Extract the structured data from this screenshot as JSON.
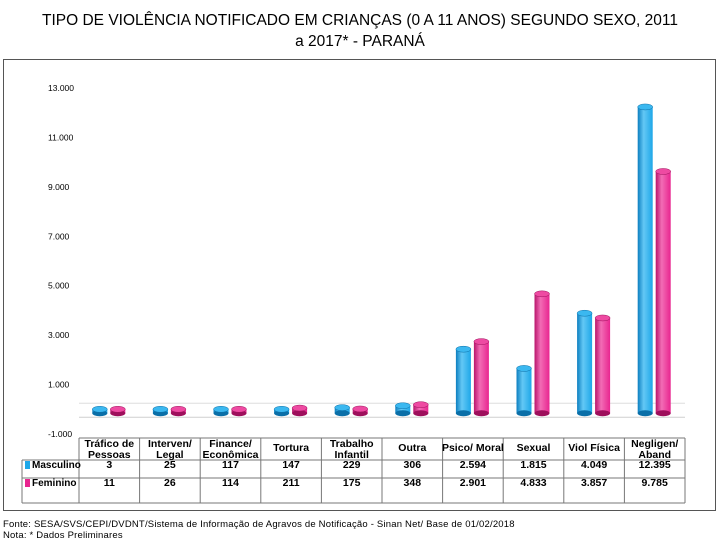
{
  "title_line1": "TIPO DE VIOLÊNCIA NOTIFICADO EM CRIANÇAS (0 A 11 ANOS) SEGUNDO SEXO, 2011",
  "title_line2": "a 2017* - PARANÁ",
  "footer": {
    "source": "Fonte: SESA/SVS/CEPI/DVDNT/Sistema de Informação de Agravos de Notificação - Sinan Net/ Base de 01/02/2018",
    "note": "Nota: * Dados Preliminares"
  },
  "colors": {
    "masculino": "#1ea7e8",
    "feminino": "#e8258f"
  },
  "chart_data": {
    "type": "bar",
    "title": "TIPO DE VIOLÊNCIA NOTIFICADO EM CRIANÇAS (0 A 11 ANOS) SEGUNDO SEXO, 2011 a 2017* - PARANÁ",
    "ylim": [
      -1000,
      13000
    ],
    "yticks": [
      "-1.000",
      "1.000",
      "3.000",
      "5.000",
      "7.000",
      "9.000",
      "11.000",
      "13.000"
    ],
    "ytick_values": [
      -1000,
      1000,
      3000,
      5000,
      7000,
      9000,
      11000,
      13000
    ],
    "categories": [
      [
        "Tráfico de",
        "Pessoas"
      ],
      [
        "Interven/",
        "Legal"
      ],
      [
        "Finance/",
        "Econômica"
      ],
      [
        "Tortura"
      ],
      [
        "Trabalho",
        "Infantil"
      ],
      [
        "Outra"
      ],
      [
        "Psico/ Moral"
      ],
      [
        "Sexual"
      ],
      [
        "Viol Física"
      ],
      [
        "Negligen/",
        "Aband"
      ]
    ],
    "series": [
      {
        "name": "Masculino",
        "values": [
          3,
          25,
          117,
          147,
          229,
          306,
          2594,
          1815,
          4049,
          12395
        ],
        "labels": [
          "3",
          "25",
          "117",
          "147",
          "229",
          "306",
          "2.594",
          "1.815",
          "4.049",
          "12.395"
        ]
      },
      {
        "name": "Feminino",
        "values": [
          11,
          26,
          114,
          211,
          175,
          348,
          2901,
          4833,
          3857,
          9785
        ],
        "labels": [
          "11",
          "26",
          "114",
          "211",
          "175",
          "348",
          "2.901",
          "4.833",
          "3.857",
          "9.785"
        ]
      }
    ],
    "grid": false,
    "legend": "table below chart"
  }
}
